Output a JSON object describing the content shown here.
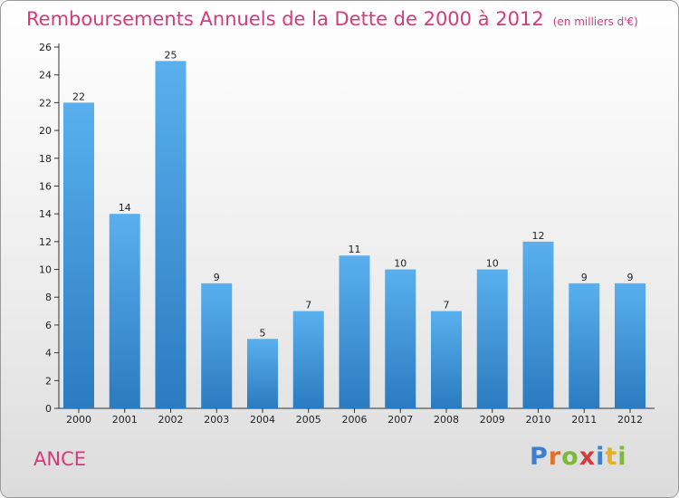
{
  "town": "ANCE",
  "logo_letters": [
    {
      "ch": "P",
      "color": "#3a7fd0"
    },
    {
      "ch": "r",
      "color": "#e0702a"
    },
    {
      "ch": "o",
      "color": "#7db83a"
    },
    {
      "ch": "x",
      "color": "#d63a3a"
    },
    {
      "ch": "i",
      "color": "#3a7fd0"
    },
    {
      "ch": "t",
      "color": "#e8b020"
    },
    {
      "ch": "i",
      "color": "#7db83a"
    }
  ],
  "colors": {
    "accent": "#d63a7a",
    "bar_top": "#5ab0ee",
    "bar_bottom": "#2a7bc0"
  },
  "chart_data": {
    "type": "bar",
    "title": "Remboursements Annuels de la Dette de 2000 à 2012",
    "unit": "(en milliers d'€)",
    "categories": [
      "2000",
      "2001",
      "2002",
      "2003",
      "2004",
      "2005",
      "2006",
      "2007",
      "2008",
      "2009",
      "2010",
      "2011",
      "2012"
    ],
    "values": [
      22,
      14,
      25,
      9,
      5,
      7,
      11,
      10,
      7,
      10,
      12,
      9,
      9
    ],
    "ylim": [
      0,
      26
    ],
    "yticks": [
      0,
      2,
      4,
      6,
      8,
      10,
      12,
      14,
      16,
      18,
      20,
      22,
      24,
      26
    ],
    "grid": false,
    "xlabel": "",
    "ylabel": ""
  }
}
